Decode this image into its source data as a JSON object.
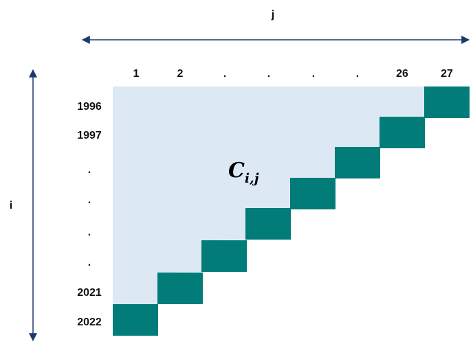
{
  "axis": {
    "column_label": "j",
    "row_label": "i"
  },
  "columns": [
    "1",
    "2",
    ".",
    ".",
    ".",
    ".",
    "26",
    "27"
  ],
  "rows": [
    "1996",
    "1997",
    ".",
    ".",
    ".",
    ".",
    "2021",
    "2022"
  ],
  "cell_label": {
    "base": "C",
    "subscript": "i,j"
  },
  "colors": {
    "fill": "#dce8f4",
    "diagonal": "#017c78",
    "arrow": "#1b3a6b"
  }
}
